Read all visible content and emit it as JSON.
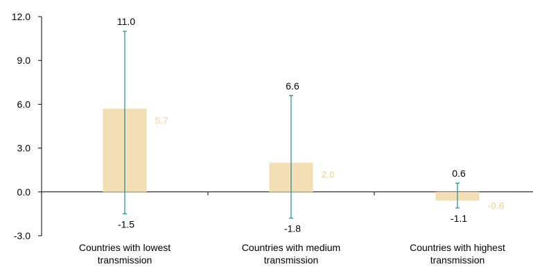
{
  "chart_data": {
    "type": "bar",
    "categories": [
      [
        "Countries with lowest",
        "transmission"
      ],
      [
        "Countries with medium",
        "transmission"
      ],
      [
        "Countries with highest",
        "transmission"
      ]
    ],
    "values": [
      5.7,
      2.0,
      -0.6
    ],
    "value_labels": [
      "5.7",
      "2.0",
      "-0.6"
    ],
    "error_high": [
      11.0,
      6.6,
      0.6
    ],
    "error_high_labels": [
      "11.0",
      "6.6",
      "0.6"
    ],
    "error_low": [
      -1.5,
      -1.8,
      -1.1
    ],
    "error_low_labels": [
      "-1.5",
      "-1.8",
      "-1.1"
    ],
    "ylim": [
      -3.0,
      12.0
    ],
    "yticks": [
      -3.0,
      0.0,
      3.0,
      6.0,
      9.0,
      12.0
    ],
    "ytick_labels": [
      "-3.0",
      "0.0",
      "3.0",
      "6.0",
      "9.0",
      "12.0"
    ],
    "grid": false,
    "legend": "none",
    "colors": {
      "bar": "#f2dfb6",
      "error_bar": "#1f8a8f",
      "value_label": "#f2dfb6",
      "axis": "#000000"
    }
  }
}
